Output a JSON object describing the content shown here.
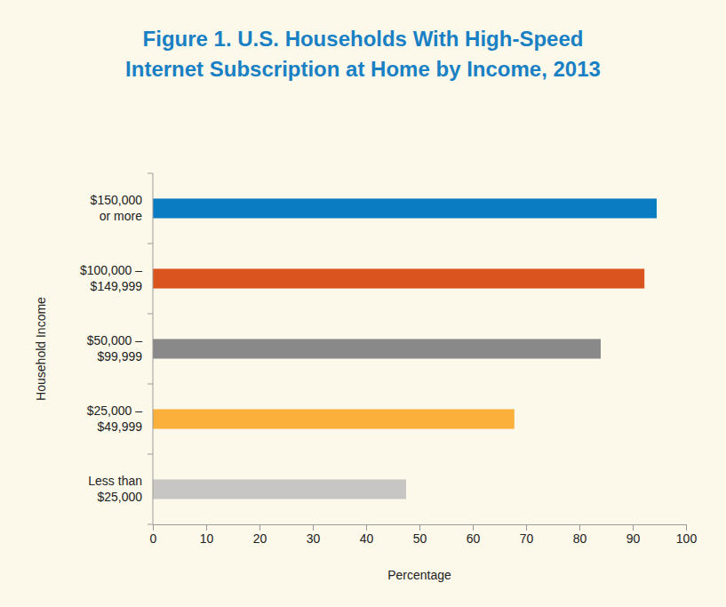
{
  "chart_data": {
    "type": "bar",
    "orientation": "horizontal",
    "title": "Figure 1. U.S. Households With High-Speed\nInternet Subscription at Home by Income, 2013",
    "x_label": "Percentage",
    "y_label": "Household Income",
    "categories": [
      "$150,000\nor more",
      "$100,000 –\n$149,999",
      "$50,000 –\n$99,999",
      "$25,000 –\n$49,999",
      "Less than\n$25,000"
    ],
    "values": [
      94.5,
      92.2,
      84.0,
      67.8,
      47.5
    ],
    "colors": [
      "#0a7dc2",
      "#d9541e",
      "#898989",
      "#fbb03b",
      "#c8c6c4"
    ],
    "xlim": [
      0,
      100
    ],
    "xticks": [
      0,
      10,
      20,
      30,
      40,
      50,
      60,
      70,
      80,
      90,
      100
    ],
    "grid": false
  }
}
